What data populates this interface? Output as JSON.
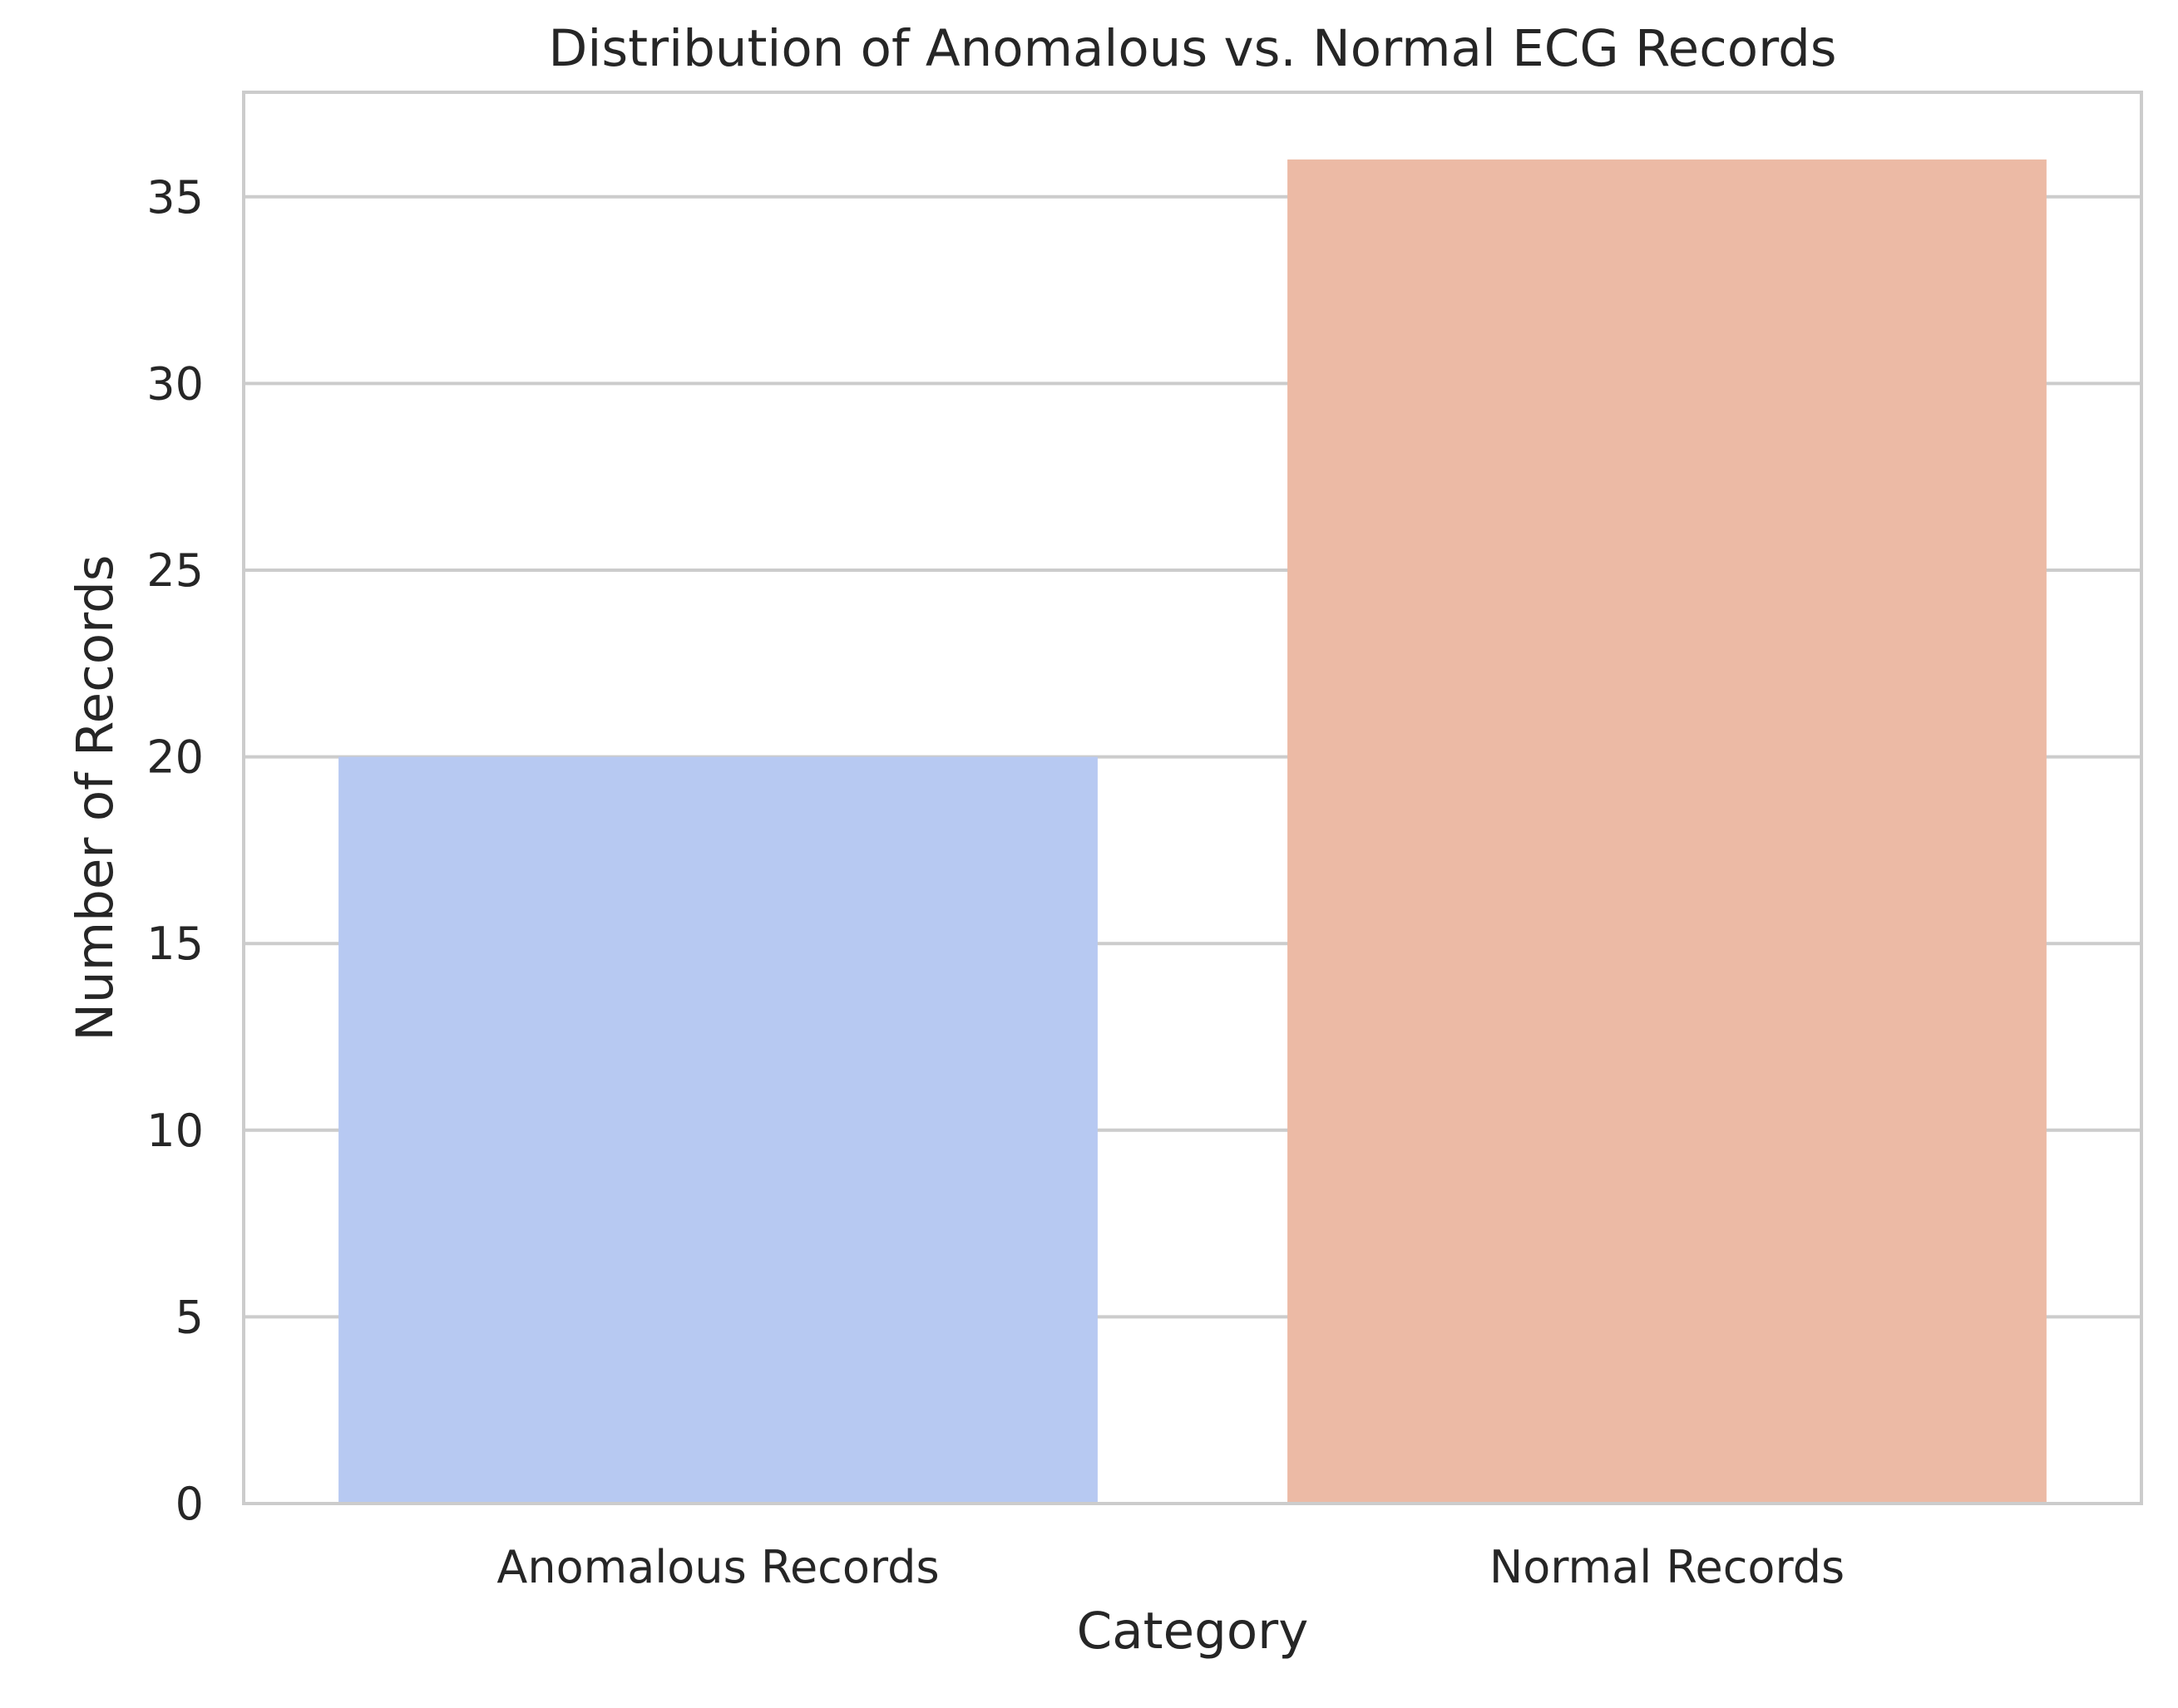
{
  "chart_data": {
    "type": "bar",
    "title": "Distribution of Anomalous vs. Normal ECG Records",
    "xlabel": "Category",
    "ylabel": "Number of Records",
    "categories": [
      "Anomalous Records",
      "Normal Records"
    ],
    "values": [
      20,
      36
    ],
    "colors": [
      "#b7c9f2",
      "#ecbaa5"
    ],
    "ylim": [
      0,
      37.8
    ],
    "yticks": [
      0,
      5,
      10,
      15,
      20,
      25,
      30,
      35
    ],
    "grid": true,
    "grid_color": "#cccccc",
    "frame_color": "#cccccc",
    "legend": "none"
  }
}
